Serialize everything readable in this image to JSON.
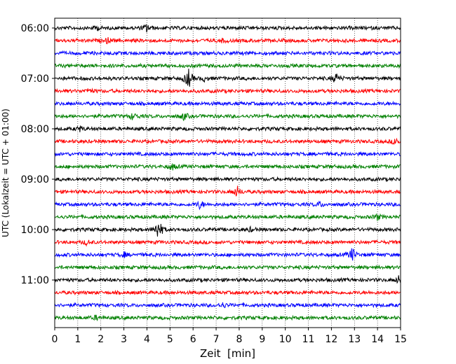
{
  "chart_data": {
    "type": "line",
    "title": "",
    "xlabel": "Zeit  [min]",
    "ylabel": "UTC (Lokalzeit = UTC + 01:00)",
    "xlim": [
      0,
      15
    ],
    "x_ticks": [
      0,
      1,
      2,
      3,
      4,
      5,
      6,
      7,
      8,
      9,
      10,
      11,
      12,
      13,
      14,
      15
    ],
    "x_tick_labels": [
      "0",
      "1",
      "2",
      "3",
      "4",
      "5",
      "6",
      "7",
      "8",
      "9",
      "10",
      "11",
      "12",
      "13",
      "14",
      "15"
    ],
    "x_grid": "dotted vertical",
    "trace_length_min": 15,
    "traces_per_hour": 4,
    "start_hour": 6,
    "y_tick_labels": [
      "06:00",
      "07:00",
      "08:00",
      "09:00",
      "10:00",
      "11:00"
    ],
    "trace_colors": [
      "#000000",
      "#ff0000",
      "#0000ff",
      "#008000"
    ],
    "traces": [
      {
        "time": "06:00",
        "color": "#000000",
        "events": [
          {
            "minute": 4.0,
            "amplitude": 0.35
          },
          {
            "minute": 1.8,
            "amplitude": 0.2
          }
        ]
      },
      {
        "time": "06:15",
        "color": "#ff0000",
        "events": [
          {
            "minute": 2.3,
            "amplitude": 0.2
          },
          {
            "minute": 7.3,
            "amplitude": 0.15
          }
        ]
      },
      {
        "time": "06:30",
        "color": "#0000ff",
        "events": []
      },
      {
        "time": "06:45",
        "color": "#008000",
        "events": []
      },
      {
        "time": "07:00",
        "color": "#000000",
        "events": [
          {
            "minute": 5.8,
            "amplitude": 0.9
          },
          {
            "minute": 12.2,
            "amplitude": 0.45
          },
          {
            "minute": 6.5,
            "amplitude": 0.2
          }
        ]
      },
      {
        "time": "07:15",
        "color": "#ff0000",
        "events": [
          {
            "minute": 1.5,
            "amplitude": 0.2
          }
        ]
      },
      {
        "time": "07:30",
        "color": "#0000ff",
        "events": []
      },
      {
        "time": "07:45",
        "color": "#008000",
        "events": [
          {
            "minute": 3.4,
            "amplitude": 0.3
          },
          {
            "minute": 5.6,
            "amplitude": 0.3
          }
        ]
      },
      {
        "time": "08:00",
        "color": "#000000",
        "events": [
          {
            "minute": 1.1,
            "amplitude": 0.2
          }
        ]
      },
      {
        "time": "08:15",
        "color": "#ff0000",
        "events": [
          {
            "minute": 14.8,
            "amplitude": 0.3
          }
        ]
      },
      {
        "time": "08:30",
        "color": "#0000ff",
        "events": []
      },
      {
        "time": "08:45",
        "color": "#008000",
        "events": [
          {
            "minute": 5.1,
            "amplitude": 0.25
          }
        ]
      },
      {
        "time": "09:00",
        "color": "#000000",
        "events": []
      },
      {
        "time": "09:15",
        "color": "#ff0000",
        "events": [
          {
            "minute": 7.9,
            "amplitude": 0.5
          }
        ]
      },
      {
        "time": "09:30",
        "color": "#0000ff",
        "events": [
          {
            "minute": 6.3,
            "amplitude": 0.35
          },
          {
            "minute": 11.5,
            "amplitude": 0.2
          }
        ]
      },
      {
        "time": "09:45",
        "color": "#008000",
        "events": [
          {
            "minute": 14.0,
            "amplitude": 0.25
          }
        ]
      },
      {
        "time": "10:00",
        "color": "#000000",
        "events": [
          {
            "minute": 4.5,
            "amplitude": 1.0
          },
          {
            "minute": 8.5,
            "amplitude": 0.15
          }
        ]
      },
      {
        "time": "10:15",
        "color": "#ff0000",
        "events": [
          {
            "minute": 1.4,
            "amplitude": 0.2
          }
        ]
      },
      {
        "time": "10:30",
        "color": "#0000ff",
        "events": [
          {
            "minute": 12.9,
            "amplitude": 0.6
          },
          {
            "minute": 3.0,
            "amplitude": 0.2
          }
        ]
      },
      {
        "time": "10:45",
        "color": "#008000",
        "events": []
      },
      {
        "time": "11:00",
        "color": "#000000",
        "events": [
          {
            "minute": 14.9,
            "amplitude": 0.3
          }
        ]
      },
      {
        "time": "11:15",
        "color": "#ff0000",
        "events": []
      },
      {
        "time": "11:30",
        "color": "#0000ff",
        "events": [
          {
            "minute": 7.3,
            "amplitude": 0.2
          }
        ]
      },
      {
        "time": "11:45",
        "color": "#008000",
        "events": [
          {
            "minute": 1.8,
            "amplitude": 0.15
          }
        ]
      }
    ]
  }
}
